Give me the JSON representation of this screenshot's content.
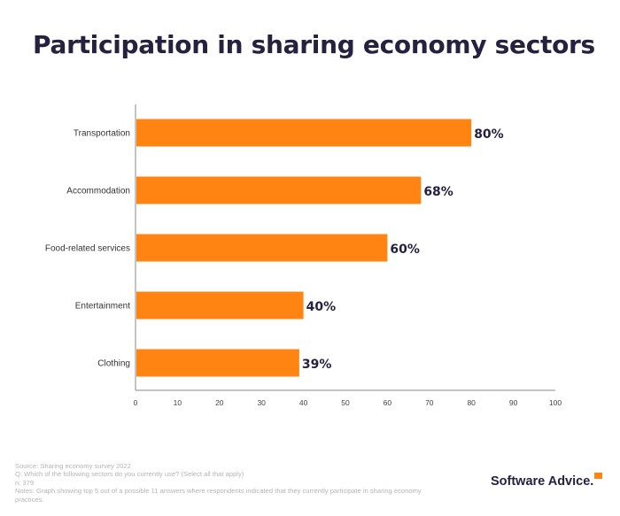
{
  "chart_data": {
    "type": "bar",
    "orientation": "horizontal",
    "title": "Participation in sharing economy sectors",
    "categories": [
      "Transportation",
      "Accommodation",
      "Food-related services",
      "Entertainment",
      "Clothing"
    ],
    "values": [
      80,
      68,
      60,
      40,
      39
    ],
    "data_labels": [
      "80%",
      "68%",
      "60%",
      "40%",
      "39%"
    ],
    "xlim": [
      0,
      100
    ],
    "xticks": [
      0,
      10,
      20,
      30,
      40,
      50,
      60,
      70,
      80,
      90,
      100
    ],
    "grid": false,
    "bar_color": "#ff8412",
    "label_color": "#25213f"
  },
  "footnotes": {
    "source": "Source: Sharing economy survey 2022",
    "question": "Q: Which of the following sectors do you currently use? (Select all that apply)",
    "n": "n: 379",
    "notes": "Notes: Graph showing top 5 out of a possible 11 answers where respondents indicated that they currently participate in sharing economy practices."
  },
  "logo": {
    "text": "Software Advice."
  }
}
